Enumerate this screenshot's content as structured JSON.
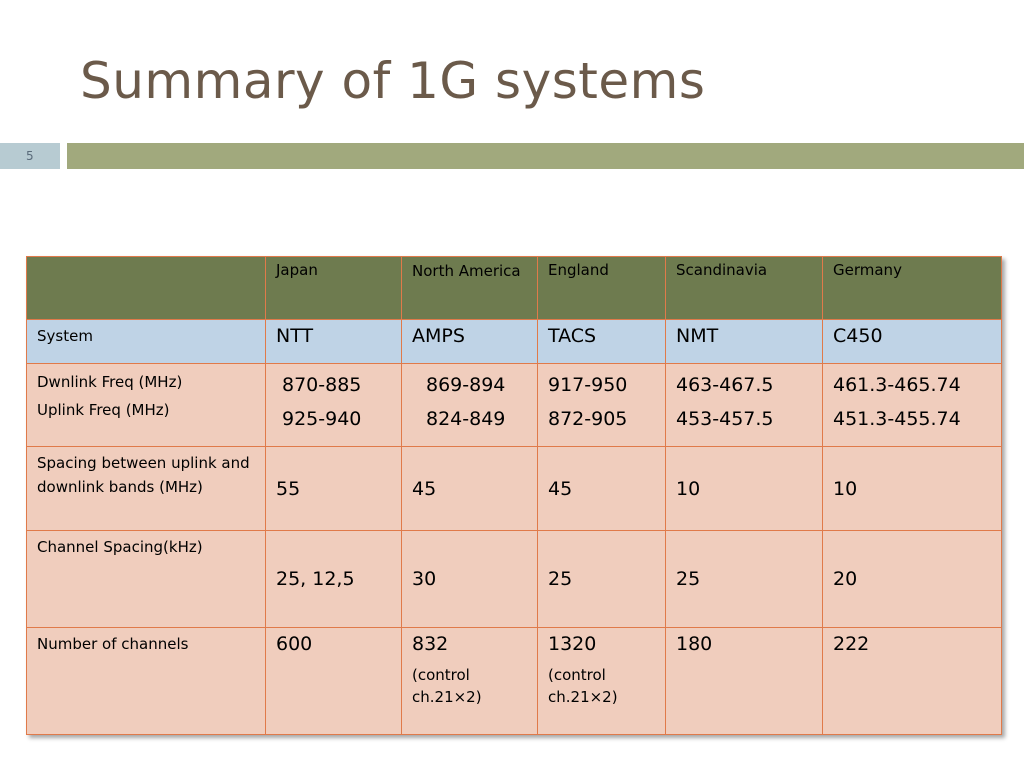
{
  "slide": {
    "title": "Summary of 1G systems",
    "number": "5"
  },
  "table": {
    "headers": [
      "",
      "Japan",
      "North America",
      "England",
      "Scandinavia",
      "Germany"
    ],
    "system": {
      "label": "System",
      "values": [
        "NTT",
        "AMPS",
        "TACS",
        "NMT",
        "C450"
      ]
    },
    "freq": {
      "down_label": "Dwnlink Freq (MHz)",
      "up_label": "Uplink Freq (MHz)",
      "down": [
        "870-885",
        "869-894",
        "917-950",
        "463-467.5",
        "461.3-465.74"
      ],
      "up": [
        "925-940",
        "824-849",
        "872-905",
        "453-457.5",
        "451.3-455.74"
      ]
    },
    "spacing": {
      "label": "Spacing between uplink and downlink bands (MHz)",
      "values": [
        "55",
        "45",
        "45",
        "10",
        "10"
      ]
    },
    "channel_spacing": {
      "label": "Channel Spacing(kHz)",
      "values": [
        "25, 12,5",
        "30",
        "25",
        "25",
        "20"
      ]
    },
    "channels": {
      "label": "Number of channels",
      "values": [
        "600",
        "832",
        "1320",
        "180",
        "222"
      ],
      "notes": [
        "",
        "(control ch.21×2)",
        "(control ch.21×2)",
        "",
        ""
      ]
    }
  }
}
